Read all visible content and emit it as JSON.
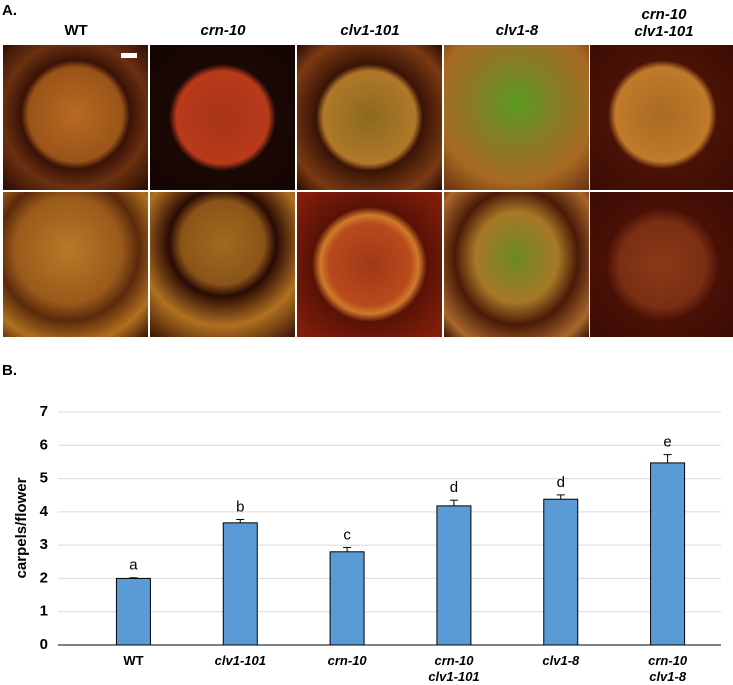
{
  "panel_a": {
    "label": "A.",
    "headers": [
      "WT",
      "crn-10",
      "clv1-101",
      "clv1-8",
      "crn-10\nclv1-101"
    ]
  },
  "panel_b": {
    "label": "B."
  },
  "chart_data": {
    "type": "bar",
    "y_label": "carpels/flower",
    "categories": [
      "WT",
      "clv1-101",
      "crn-10",
      "crn-10\nclv1-101",
      "clv1-8",
      "crn-10\nclv1-8"
    ],
    "values": [
      2.0,
      3.67,
      2.8,
      4.18,
      4.38,
      5.47
    ],
    "errors": [
      0.02,
      0.1,
      0.13,
      0.17,
      0.13,
      0.25
    ],
    "annotations": [
      "a",
      "b",
      "c",
      "d",
      "d",
      "e"
    ],
    "color": "#5b9bd5",
    "ylim": [
      0,
      7
    ],
    "yticks": [
      0,
      1,
      2,
      3,
      4,
      5,
      6,
      7
    ],
    "grid": true
  }
}
